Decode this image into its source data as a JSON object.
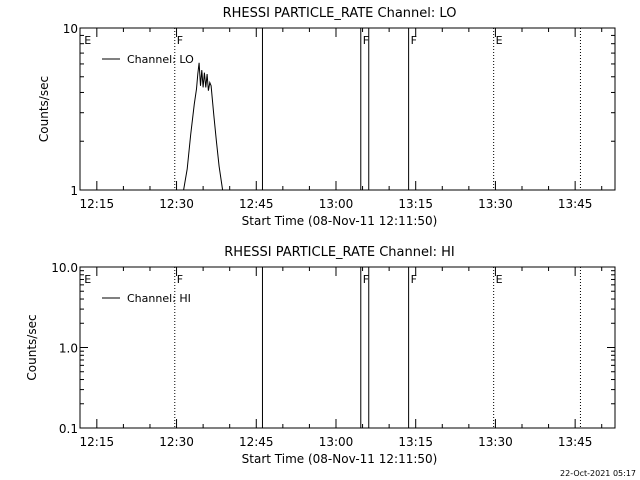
{
  "footer": {
    "timestamp": "22-Oct-2021 05:17"
  },
  "chart_data": [
    {
      "type": "line",
      "title": "RHESSI PARTICLE_RATE Channel: LO",
      "xlabel": "Start Time (08-Nov-11 12:11:50)",
      "ylabel": "Counts/sec",
      "y_scale": "log",
      "ylim": [
        1,
        10
      ],
      "y_ticks": [
        {
          "value": 1,
          "label": "1"
        },
        {
          "value": 10,
          "label": "10"
        }
      ],
      "xlim": [
        "12:11:50",
        "13:52:30"
      ],
      "x_ticks": [
        "12:15",
        "12:30",
        "12:45",
        "13:00",
        "13:15",
        "13:30",
        "13:45"
      ],
      "legend": {
        "position": "top-left",
        "entries": [
          "Channel: LO"
        ]
      },
      "series": [
        {
          "name": "Channel: LO",
          "x": [
            "12:31:20",
            "12:32:00",
            "12:32:40",
            "12:33:20",
            "12:33:45",
            "12:34:00",
            "12:34:15",
            "12:34:30",
            "12:34:45",
            "12:35:00",
            "12:35:15",
            "12:35:30",
            "12:35:45",
            "12:36:00",
            "12:36:15",
            "12:36:30",
            "12:36:45",
            "12:37:00",
            "12:37:30",
            "12:38:00",
            "12:38:40"
          ],
          "y": [
            1.0,
            1.35,
            2.2,
            3.4,
            4.2,
            5.2,
            6.1,
            4.4,
            5.5,
            4.3,
            5.3,
            4.3,
            5.2,
            4.1,
            4.6,
            4.4,
            3.6,
            2.9,
            2.0,
            1.4,
            1.0
          ]
        }
      ],
      "events": [
        {
          "time": "12:12:15",
          "label": "E",
          "style": "none"
        },
        {
          "time": "12:29:40",
          "label": "F",
          "style": "dotted"
        },
        {
          "time": "12:46:10",
          "label": "",
          "style": "solid"
        },
        {
          "time": "13:04:40",
          "label": "F",
          "style": "solid"
        },
        {
          "time": "13:06:10",
          "label": "",
          "style": "solid"
        },
        {
          "time": "13:13:40",
          "label": "F",
          "style": "solid"
        },
        {
          "time": "13:29:40",
          "label": "E",
          "style": "dotted"
        },
        {
          "time": "13:46:00",
          "label": "",
          "style": "dotted"
        }
      ]
    },
    {
      "type": "line",
      "title": "RHESSI PARTICLE_RATE Channel: HI",
      "xlabel": "Start Time (08-Nov-11 12:11:50)",
      "ylabel": "Counts/sec",
      "y_scale": "log",
      "ylim": [
        0.1,
        10.0
      ],
      "y_ticks": [
        {
          "value": 0.1,
          "label": "0.1"
        },
        {
          "value": 1.0,
          "label": "1.0"
        },
        {
          "value": 10.0,
          "label": "10.0"
        }
      ],
      "xlim": [
        "12:11:50",
        "13:52:30"
      ],
      "x_ticks": [
        "12:15",
        "12:30",
        "12:45",
        "13:00",
        "13:15",
        "13:30",
        "13:45"
      ],
      "legend": {
        "position": "top-left",
        "entries": [
          "Channel: HI"
        ]
      },
      "series": [
        {
          "name": "Channel: HI",
          "x": [],
          "y": []
        }
      ],
      "events": [
        {
          "time": "12:12:15",
          "label": "E",
          "style": "none"
        },
        {
          "time": "12:29:40",
          "label": "F",
          "style": "dotted"
        },
        {
          "time": "12:46:10",
          "label": "",
          "style": "solid"
        },
        {
          "time": "13:04:40",
          "label": "F",
          "style": "solid"
        },
        {
          "time": "13:06:10",
          "label": "",
          "style": "solid"
        },
        {
          "time": "13:13:40",
          "label": "F",
          "style": "solid"
        },
        {
          "time": "13:29:40",
          "label": "E",
          "style": "dotted"
        },
        {
          "time": "13:46:00",
          "label": "",
          "style": "dotted"
        }
      ]
    }
  ]
}
